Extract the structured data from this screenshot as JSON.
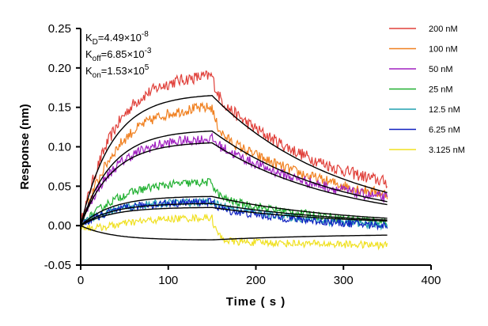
{
  "chart_data": {
    "type": "line",
    "xlabel": "Time ( s )",
    "ylabel": "Response (nm)",
    "xlim": [
      0,
      400
    ],
    "ylim": [
      -0.05,
      0.25
    ],
    "x_ticks": [
      "0",
      "100",
      "200",
      "300",
      "400"
    ],
    "y_ticks": [
      "-0.05",
      "0.00",
      "0.05",
      "0.10",
      "0.15",
      "0.20",
      "0.25"
    ],
    "grid": false,
    "legend_position": "right",
    "annotations": {
      "kd": {
        "base": "K",
        "sub": "D",
        "text": "=4.49×10",
        "sup": "-8"
      },
      "koff": {
        "base": "K",
        "sub": "off",
        "text": "=6.85×10",
        "sup": "-3"
      },
      "kon": {
        "base": "K",
        "sub": "on",
        "text": "=1.53×10",
        "sup": "5"
      }
    },
    "association_end": 150,
    "time_end": 350,
    "series": [
      {
        "name": "200 nM",
        "color": "#e0403a",
        "dissociation_amplitude": 0.165,
        "dissociation_baseline": 0.0,
        "observed_peak": 0.19,
        "observed_end": 0.055
      },
      {
        "name": "100 nM",
        "color": "#f08020",
        "dissociation_amplitude": 0.12,
        "dissociation_baseline": 0.0,
        "observed_peak": 0.15,
        "observed_end": 0.04
      },
      {
        "name": "50 nM",
        "color": "#a020c0",
        "dissociation_amplitude": 0.105,
        "dissociation_baseline": 0.0,
        "observed_peak": 0.11,
        "observed_end": 0.035
      },
      {
        "name": "25 nM",
        "color": "#20b030",
        "dissociation_amplitude": 0.037,
        "dissociation_baseline": 0.0,
        "observed_peak": 0.055,
        "observed_end": 0.005
      },
      {
        "name": "12.5 nM",
        "color": "#20a0b0",
        "dissociation_amplitude": 0.028,
        "dissociation_baseline": 0.0,
        "observed_peak": 0.03,
        "observed_end": 0.0
      },
      {
        "name": "6.25 nM",
        "color": "#1020c0",
        "dissociation_amplitude": 0.023,
        "dissociation_baseline": 0.0,
        "observed_peak": 0.03,
        "observed_end": 0.0
      },
      {
        "name": "3.125 nM",
        "color": "#f0e020",
        "dissociation_amplitude": -0.008,
        "dissociation_baseline": -0.01,
        "observed_peak": 0.01,
        "observed_end": -0.025
      }
    ],
    "fit_color": "#000000"
  }
}
